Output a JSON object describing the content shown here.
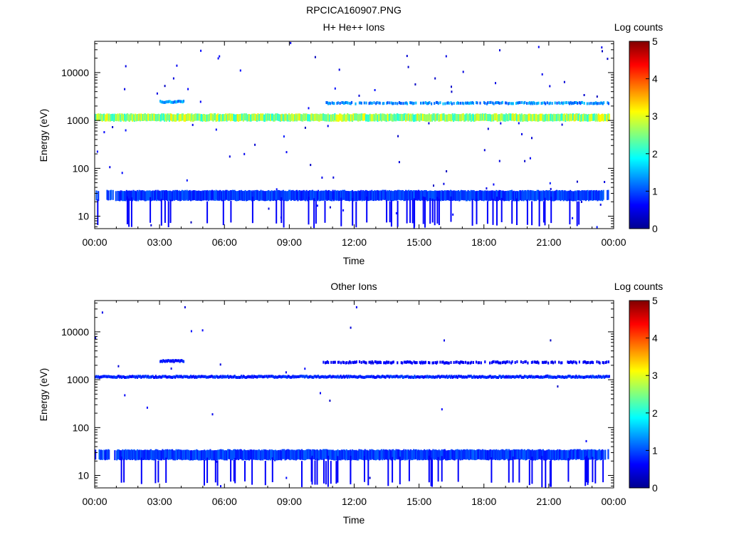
{
  "figure_title": "RPCICA160907.PNG",
  "chart_data": [
    {
      "type": "heatmap",
      "title": "H+ He++ Ions",
      "xlabel": "Time",
      "ylabel": "Energy (eV)",
      "x_ticks": [
        "00:00",
        "03:00",
        "06:00",
        "09:00",
        "12:00",
        "15:00",
        "18:00",
        "21:00",
        "00:00"
      ],
      "x_range_hours": [
        0,
        24
      ],
      "y_scale": "log",
      "y_range_eV": [
        5.5,
        45000
      ],
      "y_ticks": [
        {
          "value": 10,
          "label": "10"
        },
        {
          "value": 100,
          "label": "100"
        },
        {
          "value": 1000,
          "label": "1000"
        },
        {
          "value": 10000,
          "label": "10000"
        }
      ],
      "colorbar": {
        "label": "Log counts",
        "range": [
          0,
          5
        ],
        "ticks": [
          "0",
          "1",
          "2",
          "3",
          "4",
          "5"
        ]
      },
      "bands": [
        {
          "name": "main",
          "energy_eV": 1150,
          "start_h": 0.0,
          "end_h": 23.8,
          "intensity": 2.6
        },
        {
          "name": "alpha",
          "energy_eV": 2300,
          "start_h": 10.5,
          "end_h": 23.8,
          "intensity": 1.3
        },
        {
          "name": "alpha-early",
          "energy_eV": 2450,
          "start_h": 3.0,
          "end_h": 4.1,
          "intensity": 1.4
        },
        {
          "name": "low",
          "energy_eV": 27,
          "start_h": 0.0,
          "end_h": 23.8,
          "intensity": 0.9
        }
      ],
      "background_density": 0.04
    },
    {
      "type": "heatmap",
      "title": "Other Ions",
      "xlabel": "Time",
      "ylabel": "Energy (eV)",
      "x_ticks": [
        "00:00",
        "03:00",
        "06:00",
        "09:00",
        "12:00",
        "15:00",
        "18:00",
        "21:00",
        "00:00"
      ],
      "x_range_hours": [
        0,
        24
      ],
      "y_scale": "log",
      "y_range_eV": [
        5.5,
        45000
      ],
      "y_ticks": [
        {
          "value": 10,
          "label": "10"
        },
        {
          "value": 100,
          "label": "100"
        },
        {
          "value": 1000,
          "label": "1000"
        },
        {
          "value": 10000,
          "label": "10000"
        }
      ],
      "colorbar": {
        "label": "Log counts",
        "range": [
          0,
          5
        ],
        "ticks": [
          "0",
          "1",
          "2",
          "3",
          "4",
          "5"
        ]
      },
      "bands": [
        {
          "name": "main",
          "energy_eV": 1150,
          "start_h": 0.0,
          "end_h": 23.8,
          "intensity": 0.8
        },
        {
          "name": "alpha",
          "energy_eV": 2300,
          "start_h": 10.5,
          "end_h": 23.8,
          "intensity": 0.6
        },
        {
          "name": "alpha-early",
          "energy_eV": 2450,
          "start_h": 3.0,
          "end_h": 4.1,
          "intensity": 0.7
        },
        {
          "name": "low",
          "energy_eV": 27,
          "start_h": 0.0,
          "end_h": 23.8,
          "intensity": 0.9
        }
      ],
      "background_density": 0.012
    }
  ]
}
